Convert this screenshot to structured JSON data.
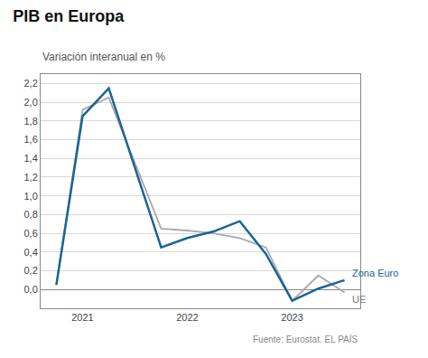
{
  "chart_data": {
    "type": "line",
    "title": "PIB en Europa",
    "subtitle": "Variación interanual en %",
    "annotations": [
      "Fuente: Eurostat. EL PAÍS"
    ],
    "x": [
      2020.75,
      2021.0,
      2021.25,
      2021.75,
      2022.0,
      2022.25,
      2022.5,
      2022.75,
      2023.0,
      2023.25,
      2023.5
    ],
    "series": [
      {
        "name": "UE",
        "color": "#aaaaaa",
        "values": [
          0.05,
          1.92,
          2.05,
          0.65,
          0.63,
          0.6,
          0.55,
          0.45,
          -0.12,
          0.15,
          -0.03
        ]
      },
      {
        "name": "Zona Euro",
        "color": "#1a6496",
        "values": [
          0.05,
          1.85,
          2.15,
          0.45,
          0.55,
          0.62,
          0.73,
          0.38,
          -0.12,
          0.01,
          0.1
        ]
      }
    ],
    "xlim": [
      2020.6,
      2023.65
    ],
    "xticks": [
      2021,
      2022,
      2023
    ],
    "ylim": [
      -0.2,
      2.3
    ],
    "yticks": [
      {
        "value": 0.0,
        "label": "0,0"
      },
      {
        "value": 0.2,
        "label": "0,2"
      },
      {
        "value": 0.4,
        "label": "0,4"
      },
      {
        "value": 0.6,
        "label": "0,6"
      },
      {
        "value": 0.8,
        "label": "0,8"
      },
      {
        "value": 1.0,
        "label": "1,0"
      },
      {
        "value": 1.2,
        "label": "1,2"
      },
      {
        "value": 1.4,
        "label": "1,4"
      },
      {
        "value": 1.6,
        "label": "1,6"
      },
      {
        "value": 1.8,
        "label": "1,8"
      },
      {
        "value": 2.0,
        "label": "2,0"
      },
      {
        "value": 2.2,
        "label": "2,2"
      }
    ],
    "grid": true
  }
}
